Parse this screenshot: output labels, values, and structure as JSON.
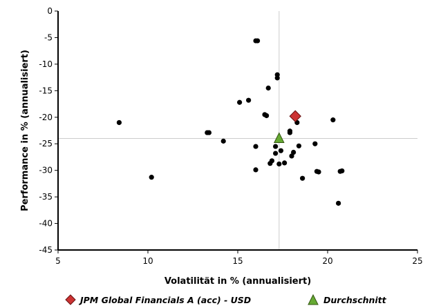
{
  "chart_data": {
    "type": "scatter",
    "xlabel": "Volatilität in % (annualisiert)",
    "ylabel": "Performance in % (annualisiert)",
    "xlim": [
      5,
      25
    ],
    "ylim": [
      -45,
      0
    ],
    "xticks": [
      5,
      10,
      15,
      20,
      25
    ],
    "yticks": [
      0,
      -5,
      -10,
      -15,
      -20,
      -25,
      -30,
      -35,
      -40,
      -45
    ],
    "grid": false,
    "reference_lines": {
      "x": 17.3,
      "y": -24.0
    },
    "legend_position": "bottom-center",
    "colors": {
      "points": "#000000",
      "fund": "#cc3333",
      "average": "#66aa33",
      "reference": "#cccccc"
    },
    "series": [
      {
        "values": [
          [
            8.4,
            -21.0
          ],
          [
            10.2,
            -31.3
          ],
          [
            13.3,
            -22.9
          ],
          [
            13.4,
            -22.9
          ],
          [
            14.2,
            -24.5
          ],
          [
            15.1,
            -17.2
          ],
          [
            15.6,
            -16.8
          ],
          [
            16.0,
            -5.6
          ],
          [
            16.1,
            -5.6
          ],
          [
            16.0,
            -25.5
          ],
          [
            16.0,
            -29.9
          ],
          [
            16.5,
            -19.5
          ],
          [
            16.6,
            -19.7
          ],
          [
            16.7,
            -14.5
          ],
          [
            16.8,
            -28.7
          ],
          [
            16.9,
            -28.2
          ],
          [
            17.1,
            -25.5
          ],
          [
            17.1,
            -26.8
          ],
          [
            17.2,
            -12.0
          ],
          [
            17.2,
            -12.6
          ],
          [
            17.3,
            -28.8
          ],
          [
            17.4,
            -26.3
          ],
          [
            17.6,
            -28.6
          ],
          [
            17.9,
            -22.6
          ],
          [
            17.9,
            -22.9
          ],
          [
            18.0,
            -27.3
          ],
          [
            18.1,
            -26.6
          ],
          [
            18.3,
            -21.0
          ],
          [
            18.4,
            -25.4
          ],
          [
            18.6,
            -31.5
          ],
          [
            19.3,
            -25.0
          ],
          [
            19.4,
            -30.2
          ],
          [
            19.5,
            -30.3
          ],
          [
            20.3,
            -20.5
          ],
          [
            20.6,
            -36.2
          ],
          [
            20.7,
            -30.2
          ],
          [
            20.8,
            -30.1
          ]
        ]
      },
      {
        "name": "JPM Global Financials A (acc) - USD",
        "marker": "diamond",
        "values": [
          [
            18.2,
            -19.8
          ]
        ]
      },
      {
        "name": "Durchschnitt",
        "marker": "triangle",
        "values": [
          [
            17.3,
            -24.0
          ]
        ]
      }
    ]
  }
}
